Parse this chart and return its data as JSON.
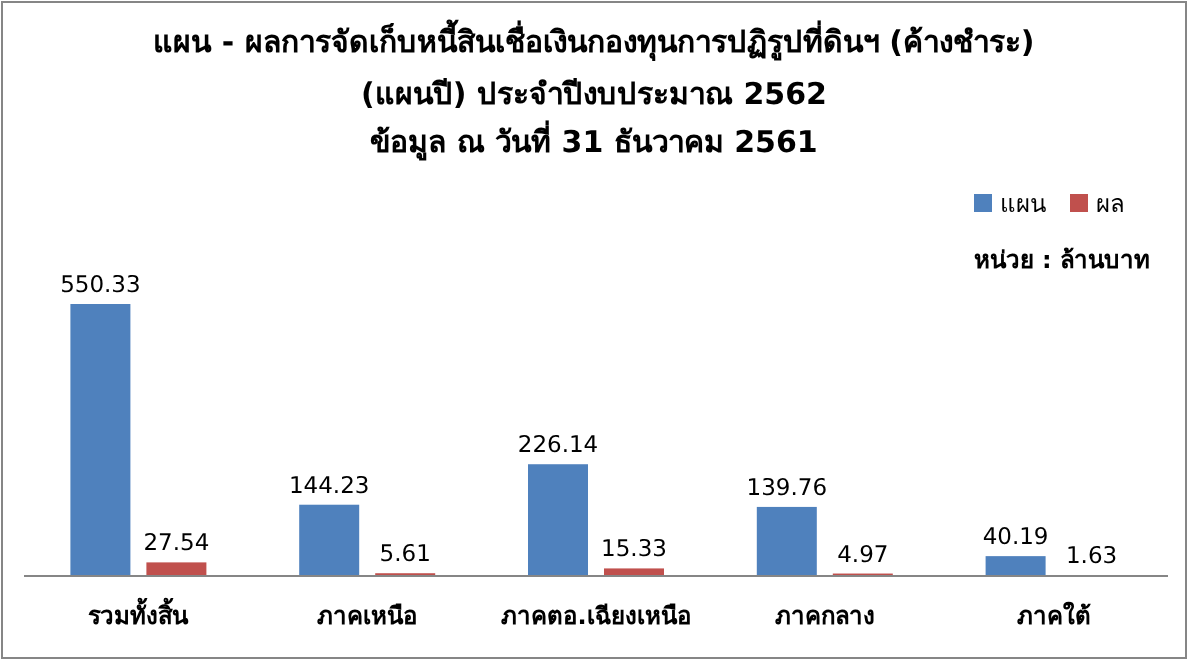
{
  "chart_data": {
    "type": "bar",
    "title": "แผน - ผลการจัดเก็บหนี้สินเชื่อเงินกองทุนการปฏิรูปที่ดินฯ (ค้างชำระ)",
    "subtitle": "(แผนปี)  ประจำปีงบประมาณ 2562\nข้อมูล ณ วันที่ 31 ธันวาคม 2561",
    "annotations": [
      "หน่วย : ล้านบาท"
    ],
    "categories": [
      "รวมทั้งสิ้น",
      "ภาคเหนือ",
      "ภาคตอ.เฉียงเหนือ",
      "ภาคกลาง",
      "ภาคใต้"
    ],
    "series": [
      {
        "name": "แผน",
        "color": "#4f81bd",
        "values": [
          550.33,
          144.23,
          226.14,
          139.76,
          40.19
        ]
      },
      {
        "name": "ผล",
        "color": "#c0504d",
        "values": [
          27.54,
          5.61,
          15.33,
          4.97,
          1.63
        ]
      }
    ],
    "data_labels": true,
    "legend": "top right",
    "grid": false
  }
}
